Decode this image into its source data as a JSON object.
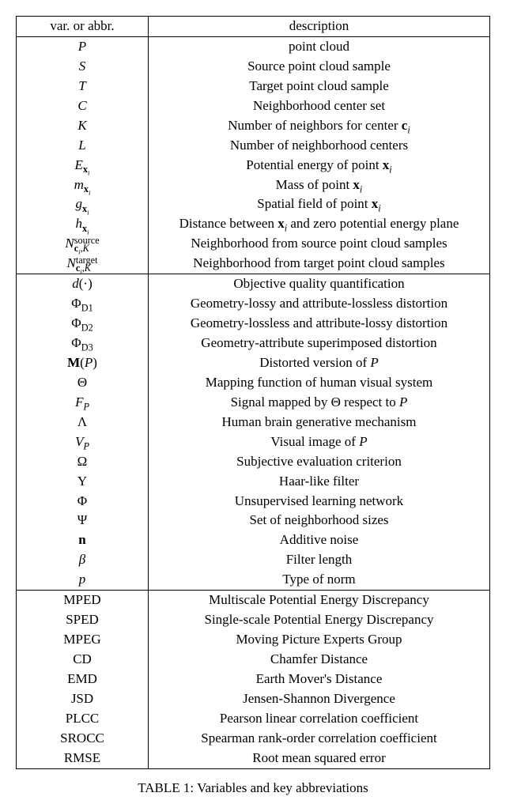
{
  "header": {
    "var": "var. or abbr.",
    "desc": "description"
  },
  "sections": [
    {
      "rows": [
        {
          "var_html": "<span class='cal'>P</span>",
          "desc": "point cloud"
        },
        {
          "var_html": "<span class='cal'>S</span>",
          "desc": "Source point cloud sample"
        },
        {
          "var_html": "<span class='cal'>T</span>",
          "desc": "Target point cloud sample"
        },
        {
          "var_html": "<span class='cal'>C</span>",
          "desc": "Neighborhood center set"
        },
        {
          "var_html": "<span class='it'>K</span>",
          "desc_html": "Number of neighbors for center <span class='bf'>c</span><sub><span class='it'>i</span></sub>"
        },
        {
          "var_html": "<span class='it'>L</span>",
          "desc": "Number of neighborhood centers"
        },
        {
          "var_html": "<span class='it'>E</span><sub><span class='bf'>x</span><sub><span class='it'>i</span></sub></sub>",
          "desc_html": "Potential energy of point <span class='bf'>x</span><sub><span class='it'>i</span></sub>"
        },
        {
          "var_html": "<span class='it'>m</span><sub><span class='bf'>x</span><sub><span class='it'>i</span></sub></sub>",
          "desc_html": "Mass of point <span class='bf'>x</span><sub><span class='it'>i</span></sub>"
        },
        {
          "var_html": "<span class='it'>g</span><sub><span class='bf'>x</span><sub><span class='it'>i</span></sub></sub>",
          "desc_html": "Spatial field of point <span class='bf'>x</span><sub><span class='it'>i</span></sub>"
        },
        {
          "var_html": "<span class='it'>h</span><sub><span class='bf'>x</span><sub><span class='it'>i</span></sub></sub>",
          "desc_html": "Distance between <span class='bf'>x</span><sub><span class='it'>i</span></sub> and zero potential energy plane"
        },
        {
          "var_html": "<span class='cal'>N</span><span class='stack'><span class='sup'><span class='rm'>source</span></span><span class='sub'><span class='bf'>c</span><sub><span class='it'>i</span></sub>,<span class='it'>K</span></span></span>",
          "desc": "Neighborhood from source point cloud samples"
        },
        {
          "var_html": "<span class='cal'>N</span><span class='stack'><span class='sup'><span class='rm'>target</span></span><span class='sub'><span class='bf'>c</span><sub><span class='it'>i</span></sub>,<span class='it'>K</span></span></span>",
          "desc": "Neighborhood from target point cloud samples"
        }
      ]
    },
    {
      "rows": [
        {
          "var_html": "<span class='it'>d</span>(·)",
          "desc": "Objective quality quantification"
        },
        {
          "var_html": "Φ<sub><span class='rm'>D</span>1</sub>",
          "desc": "Geometry-lossy and attribute-lossless distortion"
        },
        {
          "var_html": "Φ<sub><span class='rm'>D</span>2</sub>",
          "desc": "Geometry-lossless and attribute-lossy distortion"
        },
        {
          "var_html": "Φ<sub><span class='rm'>D</span>3</sub>",
          "desc": "Geometry-attribute superimposed distortion"
        },
        {
          "var_html": "<span class='bf'>M</span>(<span class='cal'>P</span>)",
          "desc_html": "Distorted version of <span class='cal'>P</span>"
        },
        {
          "var_html": "Θ",
          "desc": "Mapping function of human visual system"
        },
        {
          "var_html": "<span class='cal'>F</span><sub><span class='cal'>P</span></sub>",
          "desc_html": "Signal mapped by Θ respect to <span class='cal'>P</span>"
        },
        {
          "var_html": "Λ",
          "desc": "Human brain generative mechanism"
        },
        {
          "var_html": "<span class='cal'>V</span><sub><span class='cal'>P</span></sub>",
          "desc_html": "Visual image of <span class='cal'>P</span>"
        },
        {
          "var_html": "Ω",
          "desc": "Subjective evaluation criterion"
        },
        {
          "var_html": "Υ",
          "desc": "Haar-like filter"
        },
        {
          "var_html": "Φ",
          "desc": "Unsupervised learning network"
        },
        {
          "var_html": "Ψ",
          "desc": "Set of neighborhood sizes"
        },
        {
          "var_html": "<span class='bf'>n</span>",
          "desc": "Additive noise"
        },
        {
          "var_html": "<span class='it'>β</span>",
          "desc": "Filter length"
        },
        {
          "var_html": "<span class='it'>p</span>",
          "desc": "Type of norm"
        }
      ]
    },
    {
      "rows": [
        {
          "var": "MPED",
          "desc": "Multiscale Potential Energy Discrepancy"
        },
        {
          "var": "SPED",
          "desc": "Single-scale Potential Energy Discrepancy"
        },
        {
          "var": "MPEG",
          "desc": "Moving Picture Experts Group"
        },
        {
          "var": "CD",
          "desc": "Chamfer Distance"
        },
        {
          "var": "EMD",
          "desc": "Earth Mover's Distance"
        },
        {
          "var": "JSD",
          "desc": "Jensen-Shannon Divergence"
        },
        {
          "var": "PLCC",
          "desc": "Pearson linear correlation coefficient"
        },
        {
          "var": "SROCC",
          "desc": "Spearman rank-order correlation coefficient"
        },
        {
          "var": "RMSE",
          "desc": "Root mean squared error"
        }
      ]
    }
  ],
  "caption": "TABLE 1: Variables and key abbreviations"
}
